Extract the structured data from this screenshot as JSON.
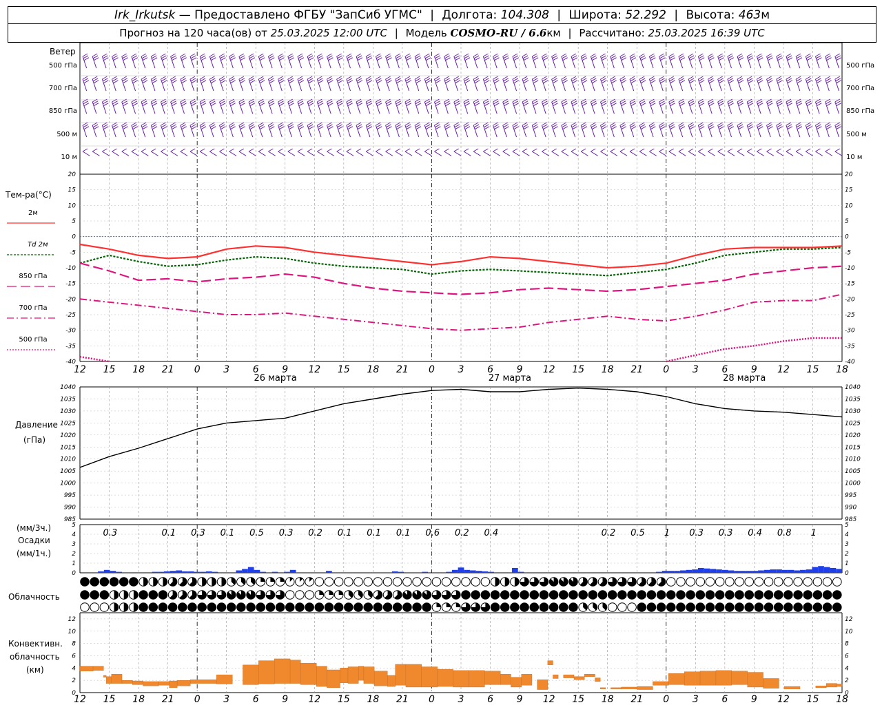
{
  "header": {
    "station": "Irk_Irkutsk",
    "provider": "— Предоставлено ФГБУ \"ЗапСиб УГМС\"",
    "lon_label": "Долгота:",
    "lon": "104.308",
    "lat_label": "Широта:",
    "lat": "52.292",
    "alt_label": "Высота:",
    "alt": "463",
    "alt_unit": "м",
    "forecast_label": "Прогноз на 120 часа(ов) от",
    "forecast_start": "25.03.2025 12:00 UTC",
    "model_label": "Модель",
    "model": "COSMO-RU / 6.6",
    "model_unit": "км",
    "calc_label": "Рассчитано:",
    "calc_time": "25.03.2025 16:39 UTC"
  },
  "wind_panel": {
    "title": "Ветер",
    "levels": [
      "500 гПа",
      "700 гПа",
      "850 гПа",
      "500 м",
      "10 м"
    ]
  },
  "temp_panel": {
    "title": "Тем-ра(°C)",
    "legend": [
      "2м",
      "Td 2м",
      "850 гПа",
      "700 гПа",
      "500 гПа"
    ],
    "legend_colors": [
      "#ff3030",
      "#006400",
      "#e0137e",
      "#e0137e",
      "#e0137e"
    ]
  },
  "pressure_panel": {
    "title": "Давление",
    "unit": "(гПа)"
  },
  "precip_panel": {
    "unit3": "(мм/3ч.)",
    "title": "Осадки",
    "unit1": "(мм/1ч.)"
  },
  "cloud_panel": {
    "title": "Облачность"
  },
  "conv_panel": {
    "title1": "Конвективн.",
    "title2": "облачность",
    "unit": "(км)"
  },
  "x_axis": {
    "hour_labels": [
      "12",
      "15",
      "18",
      "21",
      "0",
      "3",
      "6",
      "9",
      "12",
      "15",
      "18",
      "21",
      "0",
      "3",
      "6",
      "9",
      "12",
      "15",
      "18",
      "21",
      "0",
      "3",
      "6",
      "9",
      "12",
      "15",
      "18"
    ],
    "day_labels": [
      "26 марта",
      "27 марта",
      "28 марта"
    ]
  },
  "chart_data": [
    {
      "type": "line",
      "title": "Тем-ра(°C)",
      "x_hours": [
        0,
        3,
        6,
        9,
        12,
        15,
        18,
        21,
        24,
        27,
        30,
        33,
        36,
        39,
        42,
        45,
        48,
        51,
        54,
        57,
        60,
        63,
        66,
        69,
        72,
        75,
        78
      ],
      "ylim": [
        -40,
        20
      ],
      "yticks": [
        -40,
        -35,
        -30,
        -25,
        -20,
        -15,
        -10,
        -5,
        0,
        5,
        10,
        15,
        20
      ],
      "series": [
        {
          "name": "2м",
          "values": [
            -2.5,
            -4,
            -6,
            -7,
            -6.5,
            -4,
            -3,
            -3.5,
            -5,
            -6,
            -7,
            -8,
            -9,
            -8,
            -6.5,
            -7,
            -8,
            -9,
            -10,
            -9.5,
            -8.5,
            -6,
            -4,
            -3.5,
            -3.5,
            -3.5,
            -3
          ]
        },
        {
          "name": "Td 2м",
          "values": [
            -8.5,
            -6,
            -8,
            -9.5,
            -9,
            -7.5,
            -6.5,
            -7,
            -8.5,
            -9.5,
            -10,
            -10.5,
            -12,
            -11,
            -10.5,
            -11,
            -11.5,
            -12,
            -12.5,
            -11.5,
            -10.5,
            -8.5,
            -6,
            -5,
            -4,
            -4,
            -3.5
          ]
        },
        {
          "name": "850 гПа",
          "values": [
            -8.5,
            -11,
            -14,
            -13.5,
            -14.5,
            -13.5,
            -13,
            -12,
            -13,
            -15,
            -16.5,
            -17.5,
            -18,
            -18.5,
            -18,
            -17,
            -16.5,
            -17,
            -17.5,
            -17,
            -16,
            -15,
            -14,
            -12,
            -11,
            -10,
            -9.5
          ]
        },
        {
          "name": "700 гПа",
          "values": [
            -20,
            -21,
            -22,
            -23,
            -24,
            -25,
            -25,
            -24.5,
            -25.5,
            -26.5,
            -27.5,
            -28.5,
            -29.5,
            -30,
            -29.5,
            -29,
            -27.5,
            -26.5,
            -25.5,
            -26.5,
            -27,
            -25.5,
            -23.5,
            -21,
            -20.5,
            -20.5,
            -18.5
          ]
        },
        {
          "name": "500 гПа",
          "values": [
            -38.5,
            -40,
            null,
            null,
            null,
            null,
            null,
            null,
            null,
            null,
            null,
            null,
            null,
            null,
            null,
            null,
            null,
            null,
            null,
            null,
            -40,
            -38,
            -36,
            -35,
            -33.5,
            -32.5,
            -32.5
          ]
        }
      ]
    },
    {
      "type": "line",
      "title": "Давление",
      "ylabel": "(гПа)",
      "x_hours": [
        0,
        3,
        6,
        9,
        12,
        15,
        18,
        21,
        24,
        27,
        30,
        33,
        36,
        39,
        42,
        45,
        48,
        51,
        54,
        57,
        60,
        63,
        66,
        69,
        72,
        75,
        78
      ],
      "ylim": [
        985,
        1040
      ],
      "yticks": [
        985,
        990,
        995,
        1000,
        1005,
        1010,
        1015,
        1020,
        1025,
        1030,
        1035,
        1040
      ],
      "series": [
        {
          "name": "Давление",
          "values": [
            1006.5,
            1011,
            1014.5,
            1018.5,
            1022.5,
            1025,
            1026,
            1027,
            1030,
            1033,
            1035,
            1037,
            1038.5,
            1039,
            1038,
            1038,
            1039,
            1039.5,
            1039,
            1038,
            1036,
            1033,
            1031,
            1030,
            1029.5,
            1028.5,
            1027.5
          ]
        }
      ]
    },
    {
      "type": "bar",
      "title": "Осадки",
      "ylabel": "(мм/1ч.)",
      "ylim": [
        0,
        5
      ],
      "yticks": [
        0,
        1,
        2,
        3,
        4,
        5
      ],
      "totals_3h": [
        "0.3",
        "0.1",
        "0.3",
        "0.1",
        "0.5",
        "0.3",
        "0.2",
        "0.1",
        "0.1",
        "0.1",
        "0.6",
        "0.2",
        "0.4",
        "0.2",
        "0.5",
        "1",
        "0.3",
        "0.3",
        "0.4",
        "0.8",
        "1"
      ],
      "hourly": [
        0,
        0,
        0.05,
        0.15,
        0.3,
        0.2,
        0.1,
        0.05,
        0,
        0,
        0,
        0.05,
        0.1,
        0.1,
        0.15,
        0.2,
        0.25,
        0.15,
        0.15,
        0.1,
        0.1,
        0.15,
        0.1,
        0.05,
        0,
        0.05,
        0.25,
        0.4,
        0.6,
        0.3,
        0.1,
        0,
        0.1,
        0,
        0.1,
        0.3,
        0,
        0,
        0.05,
        0,
        0.05,
        0.2,
        0,
        0,
        0,
        0,
        0.05,
        0,
        0,
        0,
        0,
        0,
        0.15,
        0.1,
        0,
        0,
        0,
        0.1,
        0,
        0,
        0,
        0.1,
        0.3,
        0.55,
        0.3,
        0.25,
        0.2,
        0.15,
        0.1,
        0.05,
        0,
        0.05,
        0.5,
        0.1,
        0,
        0,
        0,
        0,
        0,
        0,
        0,
        0,
        0,
        0,
        0,
        0,
        0,
        0,
        0,
        0,
        0,
        0,
        0,
        0,
        0,
        0.05,
        0.1,
        0.2,
        0.2,
        0.2,
        0.25,
        0.3,
        0.35,
        0.5,
        0.45,
        0.4,
        0.35,
        0.3,
        0.25,
        0.2,
        0.2,
        0.2,
        0.2,
        0.25,
        0.3,
        0.35,
        0.35,
        0.3,
        0.3,
        0.25,
        0.3,
        0.35,
        0.6,
        0.7,
        0.6,
        0.5,
        0.4
      ]
    },
    {
      "type": "bar",
      "title": "Конвективн. облачность",
      "ylabel": "(км)",
      "ylim": [
        0,
        13
      ],
      "yticks": [
        0,
        2,
        4,
        6,
        8,
        10,
        12
      ],
      "layers": [
        [
          0,
          2.5,
          3.5,
          4.3
        ],
        [
          2.5,
          4.5,
          3.6,
          4.3
        ],
        [
          4.5,
          5,
          2.5,
          2.8
        ],
        [
          5,
          6,
          1.5,
          2.6
        ],
        [
          6,
          8,
          1.5,
          3
        ],
        [
          8,
          10,
          1.5,
          2
        ],
        [
          10,
          12,
          1.3,
          1.9
        ],
        [
          12,
          15,
          1.1,
          1.8
        ],
        [
          15,
          17,
          1.2,
          1.8
        ],
        [
          17,
          18.5,
          0.8,
          1.9
        ],
        [
          18.5,
          21,
          1.1,
          2
        ],
        [
          21,
          26,
          1.5,
          2.1
        ],
        [
          26,
          29,
          1.4,
          2.9
        ],
        [
          31,
          34,
          1.3,
          4.5
        ],
        [
          34,
          37,
          1.4,
          5.2
        ],
        [
          37,
          40,
          1.5,
          5.5
        ],
        [
          40,
          42,
          1.5,
          5.3
        ],
        [
          42,
          45,
          1.3,
          4.8
        ],
        [
          45,
          47,
          1,
          4.3
        ],
        [
          47,
          49.5,
          0.8,
          3.7
        ],
        [
          49.5,
          51,
          1.6,
          4
        ],
        [
          51,
          53,
          1.5,
          4.2
        ],
        [
          53,
          54,
          2,
          4.3
        ],
        [
          54,
          56,
          1.5,
          4.2
        ],
        [
          56,
          58.5,
          1.1,
          3.5
        ],
        [
          58.5,
          60,
          1,
          2.8
        ],
        [
          60,
          62,
          1.2,
          4.6
        ],
        [
          62,
          65,
          0.9,
          4.6
        ],
        [
          65,
          68,
          0.9,
          4.2
        ],
        [
          68,
          71,
          1,
          3.8
        ],
        [
          71,
          74,
          0.9,
          3.6
        ],
        [
          74,
          77,
          0.9,
          3.6
        ],
        [
          77,
          80,
          1.3,
          3.5
        ],
        [
          80,
          82,
          1.3,
          3
        ],
        [
          82,
          84,
          0.9,
          2.5
        ],
        [
          84,
          86,
          1.2,
          3
        ],
        [
          87,
          89,
          0.5,
          2.1
        ],
        [
          89,
          90,
          4.5,
          5.2
        ],
        [
          90,
          91,
          2.3,
          2.9
        ],
        [
          92,
          94,
          2.4,
          2.9
        ],
        [
          94,
          96,
          2.1,
          2.6
        ],
        [
          96,
          98,
          2.6,
          3
        ],
        [
          98,
          99,
          1.8,
          2.4
        ],
        [
          99,
          100,
          0.6,
          0.8
        ],
        [
          101,
          103,
          0.6,
          0.8
        ],
        [
          103,
          106,
          0.6,
          0.9
        ],
        [
          106,
          109,
          0.5,
          1
        ],
        [
          109,
          112,
          1.2,
          1.8
        ],
        [
          112,
          115,
          1.3,
          3.1
        ],
        [
          115,
          118,
          1.2,
          3.4
        ],
        [
          118,
          121,
          1.2,
          3.5
        ],
        [
          121,
          124,
          1.2,
          3.6
        ],
        [
          124,
          127,
          1.3,
          3.5
        ],
        [
          127,
          130,
          0.9,
          3.3
        ],
        [
          130,
          133,
          0.7,
          2.3
        ],
        [
          134,
          137,
          0.6,
          1
        ],
        [
          140,
          142,
          0.8,
          1.1
        ],
        [
          142,
          144,
          0.9,
          1.5
        ],
        [
          144,
          145,
          1,
          1.4
        ]
      ]
    }
  ],
  "clouds": {
    "rows": 3,
    "cols": 26,
    "row_levels": [
      "high",
      "mid",
      "low"
    ],
    "cover_8ths": [
      [
        8,
        8,
        4,
        5,
        4,
        3,
        2,
        1,
        0,
        0,
        0,
        0,
        0,
        0,
        4,
        6,
        7,
        5,
        6,
        5,
        0,
        0,
        0,
        0,
        0,
        0
      ],
      [
        8,
        4,
        8,
        5,
        6,
        7,
        6,
        0,
        2,
        3,
        5,
        7,
        6,
        8,
        8,
        8,
        8,
        8,
        8,
        8,
        8,
        8,
        8,
        8,
        8,
        8
      ],
      [
        0,
        4,
        8,
        8,
        8,
        8,
        8,
        8,
        8,
        8,
        8,
        8,
        2,
        6,
        8,
        8,
        8,
        3,
        0,
        8,
        8,
        8,
        8,
        8,
        8,
        8
      ]
    ]
  }
}
